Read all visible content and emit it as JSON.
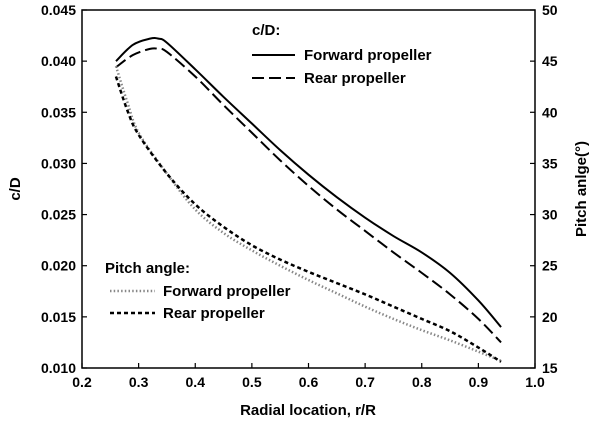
{
  "chart_data": {
    "type": "line",
    "xlabel": "Radial location, r/R",
    "ylabel_left": "c/D",
    "ylabel_right": "Pitch anlge(°)",
    "xlim": [
      0.2,
      1.0
    ],
    "ylim_left": [
      0.01,
      0.045
    ],
    "ylim_right": [
      15,
      50
    ],
    "x_ticks": [
      0.2,
      0.3,
      0.4,
      0.5,
      0.6,
      0.7,
      0.8,
      0.9,
      1.0
    ],
    "y_left_ticks": [
      0.01,
      0.015,
      0.02,
      0.025,
      0.03,
      0.035,
      0.04,
      0.045
    ],
    "y_right_ticks": [
      15,
      20,
      25,
      30,
      35,
      40,
      45,
      50
    ],
    "x_tick_labels": [
      "0.2",
      "0.3",
      "0.4",
      "0.5",
      "0.6",
      "0.7",
      "0.8",
      "0.9",
      "1.0"
    ],
    "y_left_tick_labels": [
      "0.010",
      "0.015",
      "0.020",
      "0.025",
      "0.030",
      "0.035",
      "0.040",
      "0.045"
    ],
    "y_right_tick_labels": [
      "15",
      "20",
      "25",
      "30",
      "35",
      "40",
      "45",
      "50"
    ],
    "grid": false,
    "legends": [
      {
        "title": "c/D:",
        "placement": "top-right",
        "entries": [
          "Forward propeller",
          "Rear propeller"
        ]
      },
      {
        "title": "Pitch angle:",
        "placement": "bottom-left",
        "entries": [
          "Forward propeller",
          "Rear propeller"
        ]
      }
    ],
    "series": [
      {
        "name": "Forward propeller",
        "group": "c/D:",
        "axis": "left",
        "style": "solid",
        "color": "#000000",
        "x": [
          0.26,
          0.29,
          0.32,
          0.335,
          0.35,
          0.4,
          0.45,
          0.5,
          0.55,
          0.6,
          0.65,
          0.7,
          0.75,
          0.8,
          0.85,
          0.9,
          0.94
        ],
        "y": [
          0.04,
          0.0416,
          0.0422,
          0.0422,
          0.0418,
          0.0392,
          0.0365,
          0.0339,
          0.0313,
          0.0289,
          0.0267,
          0.0247,
          0.0229,
          0.0213,
          0.0193,
          0.0166,
          0.014
        ]
      },
      {
        "name": "Rear propeller",
        "group": "c/D:",
        "axis": "left",
        "style": "dashed",
        "color": "#000000",
        "x": [
          0.26,
          0.29,
          0.32,
          0.335,
          0.35,
          0.4,
          0.45,
          0.5,
          0.55,
          0.6,
          0.65,
          0.7,
          0.75,
          0.8,
          0.85,
          0.9,
          0.94
        ],
        "y": [
          0.0394,
          0.0406,
          0.0412,
          0.0412,
          0.0409,
          0.0385,
          0.0357,
          0.033,
          0.0303,
          0.0278,
          0.0255,
          0.0234,
          0.0213,
          0.0193,
          0.0172,
          0.0148,
          0.0125
        ]
      },
      {
        "name": "Forward propeller",
        "group": "Pitch angle:",
        "axis": "right",
        "style": "dotted",
        "color": "#888888",
        "x": [
          0.26,
          0.28,
          0.3,
          0.35,
          0.4,
          0.45,
          0.5,
          0.55,
          0.6,
          0.65,
          0.7,
          0.75,
          0.8,
          0.85,
          0.9,
          0.94
        ],
        "y": [
          44.5,
          41.0,
          38.0,
          34.0,
          30.5,
          28.2,
          26.5,
          25.0,
          23.6,
          22.3,
          21.0,
          19.8,
          18.7,
          17.7,
          16.6,
          15.7
        ]
      },
      {
        "name": "Rear propeller",
        "group": "Pitch angle:",
        "axis": "right",
        "style": "short-dashed",
        "color": "#000000",
        "x": [
          0.26,
          0.28,
          0.3,
          0.35,
          0.4,
          0.45,
          0.5,
          0.55,
          0.6,
          0.65,
          0.7,
          0.75,
          0.8,
          0.85,
          0.9,
          0.94
        ],
        "y": [
          43.5,
          40.2,
          37.8,
          34.0,
          31.0,
          28.8,
          27.0,
          25.6,
          24.4,
          23.3,
          22.2,
          21.0,
          19.8,
          18.6,
          17.0,
          15.6
        ]
      }
    ]
  }
}
